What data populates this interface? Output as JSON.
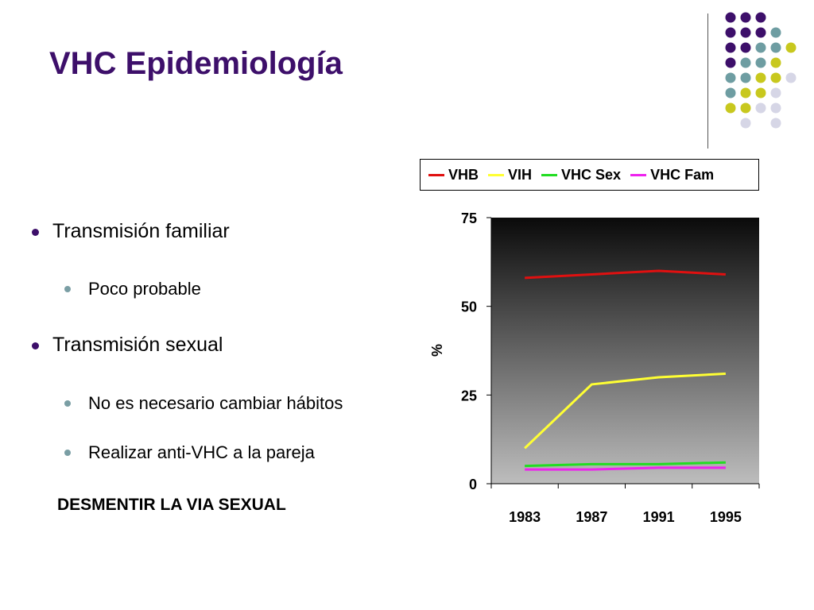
{
  "slide": {
    "title": "VHC Epidemiología",
    "bullets": [
      {
        "text": "Transmisión familiar",
        "sub": [
          "Poco probable"
        ]
      },
      {
        "text": "Transmisión sexual",
        "sub": [
          "No es necesario cambiar hábitos",
          "Realizar anti-VHC a la pareja"
        ]
      }
    ],
    "emphasis": "DESMENTIR LA VIA SEXUAL"
  },
  "colors": {
    "title": "#3d0f6a",
    "dot_purple": "#3d0f6a",
    "dot_teal": "#6e9da2",
    "dot_yellow": "#c8c81e",
    "dot_lavender": "#d6d6e6"
  },
  "chart_data": {
    "type": "line",
    "title": "",
    "xlabel": "",
    "ylabel": "%",
    "categories": [
      "1983",
      "1987",
      "1991",
      "1995"
    ],
    "ylim": [
      0,
      75
    ],
    "yticks": [
      "0",
      "25",
      "50",
      "75"
    ],
    "legend_position": "top",
    "background": "gradient dark-to-light gray",
    "series": [
      {
        "name": "VHB",
        "color": "#e01010",
        "values": [
          58,
          59,
          60,
          59
        ]
      },
      {
        "name": "VIH",
        "color": "#ffff33",
        "values": [
          10,
          28,
          30,
          31
        ]
      },
      {
        "name": "VHC Sex",
        "color": "#22dd22",
        "values": [
          5,
          5.5,
          5.5,
          6
        ]
      },
      {
        "name": "VHC Fam",
        "color": "#ee22ee",
        "values": [
          4,
          4,
          4.5,
          4.5
        ]
      }
    ]
  }
}
